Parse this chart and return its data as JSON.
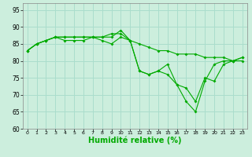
{
  "background_color": "#cceedd",
  "grid_color": "#aaddcc",
  "line_color": "#00aa00",
  "xlabel": "Humidité relative (%)",
  "xlabel_fontsize": 7,
  "ylim": [
    60,
    97
  ],
  "xlim": [
    -0.5,
    23.5
  ],
  "yticks": [
    60,
    65,
    70,
    75,
    80,
    85,
    90,
    95
  ],
  "xticks": [
    0,
    1,
    2,
    3,
    4,
    5,
    6,
    7,
    8,
    9,
    10,
    11,
    12,
    13,
    14,
    15,
    16,
    17,
    18,
    19,
    20,
    21,
    22,
    23
  ],
  "series": [
    [
      83,
      85,
      86,
      87,
      86,
      86,
      86,
      87,
      86,
      85,
      87,
      86,
      85,
      84,
      83,
      83,
      82,
      82,
      82,
      81,
      81,
      81,
      80,
      80
    ],
    [
      83,
      85,
      86,
      87,
      87,
      87,
      87,
      87,
      87,
      88,
      88,
      86,
      77,
      76,
      77,
      76,
      73,
      68,
      65,
      74,
      79,
      80,
      80,
      81
    ],
    [
      83,
      85,
      86,
      87,
      87,
      87,
      87,
      87,
      87,
      87,
      89,
      86,
      77,
      76,
      77,
      79,
      73,
      72,
      68,
      75,
      74,
      79,
      80,
      81
    ]
  ]
}
